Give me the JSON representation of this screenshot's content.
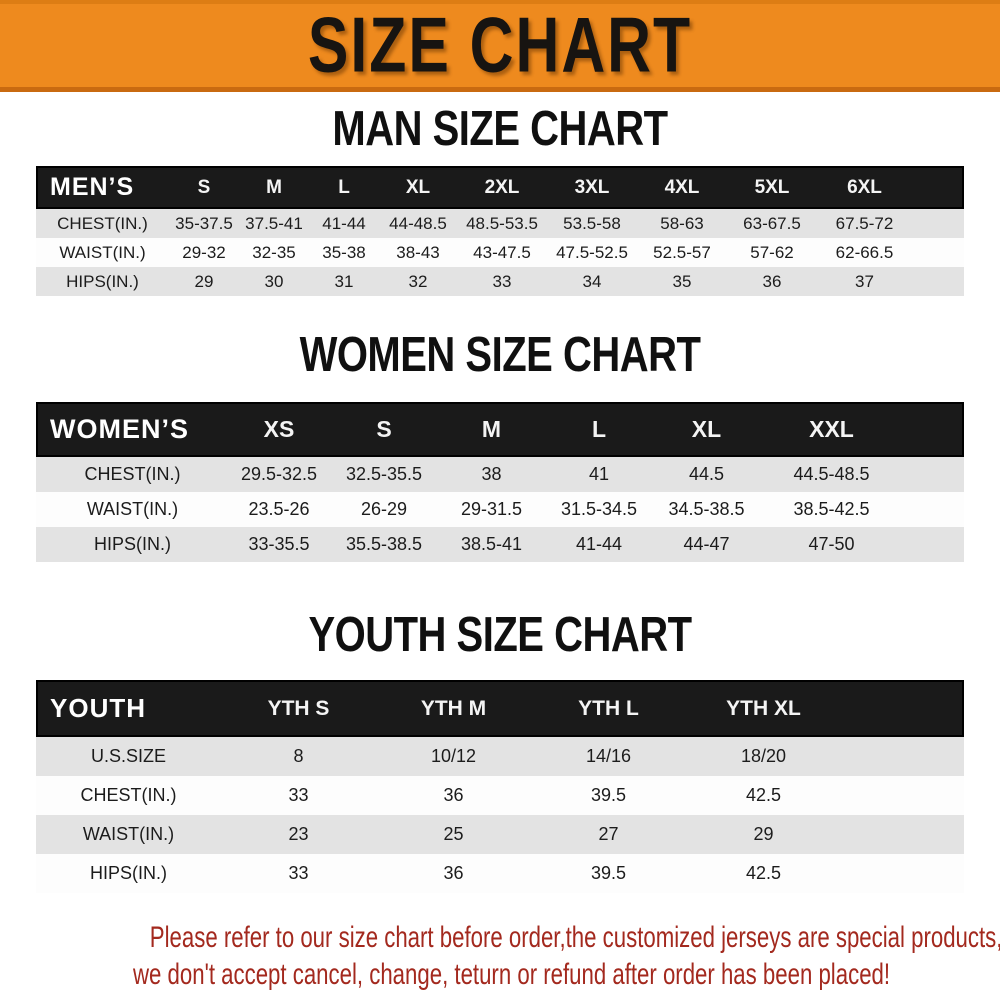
{
  "banner": {
    "title": "SIZE CHART",
    "bg_color": "#EE8A1E",
    "text_color": "#171411"
  },
  "colors": {
    "table_header_bg": "#1A1A1A",
    "table_header_text": "#FFFFFF",
    "row_alt_bg": "#E3E3E3",
    "row_bg": "#FDFDFD",
    "disclaimer_red": "#A3291E"
  },
  "sections": [
    {
      "id": "men",
      "heading": "MAN SIZE CHART",
      "table": {
        "header_label": "MEN’S",
        "sizes": [
          "S",
          "M",
          "L",
          "XL",
          "2XL",
          "3XL",
          "4XL",
          "5XL",
          "6XL"
        ],
        "rows": [
          {
            "label": "CHEST(IN.)",
            "values": [
              "35-37.5",
              "37.5-41",
              "41-44",
              "44-48.5",
              "48.5-53.5",
              "53.5-58",
              "58-63",
              "63-67.5",
              "67.5-72"
            ]
          },
          {
            "label": "WAIST(IN.)",
            "values": [
              "29-32",
              "32-35",
              "35-38",
              "38-43",
              "43-47.5",
              "47.5-52.5",
              "52.5-57",
              "57-62",
              "62-66.5"
            ]
          },
          {
            "label": "HIPS(IN.)",
            "values": [
              "29",
              "30",
              "31",
              "32",
              "33",
              "34",
              "35",
              "36",
              "37"
            ]
          }
        ]
      }
    },
    {
      "id": "women",
      "heading": "WOMEN SIZE CHART",
      "table": {
        "header_label": "WOMEN’S",
        "sizes": [
          "XS",
          "S",
          "M",
          "L",
          "XL",
          "XXL"
        ],
        "rows": [
          {
            "label": "CHEST(IN.)",
            "values": [
              "29.5-32.5",
              "32.5-35.5",
              "38",
              "41",
              "44.5",
              "44.5-48.5"
            ]
          },
          {
            "label": "WAIST(IN.)",
            "values": [
              "23.5-26",
              "26-29",
              "29-31.5",
              "31.5-34.5",
              "34.5-38.5",
              "38.5-42.5"
            ]
          },
          {
            "label": "HIPS(IN.)",
            "values": [
              "33-35.5",
              "35.5-38.5",
              "38.5-41",
              "41-44",
              "44-47",
              "47-50"
            ]
          }
        ]
      }
    },
    {
      "id": "youth",
      "heading": "YOUTH SIZE CHART",
      "table": {
        "header_label": "YOUTH",
        "sizes": [
          "YTH S",
          "YTH M",
          "YTH L",
          "YTH XL"
        ],
        "rows": [
          {
            "label": "U.S.SIZE",
            "values": [
              "8",
              "10/12",
              "14/16",
              "18/20"
            ]
          },
          {
            "label": "CHEST(IN.)",
            "values": [
              "33",
              "36",
              "39.5",
              "42.5"
            ]
          },
          {
            "label": "WAIST(IN.)",
            "values": [
              "23",
              "25",
              "27",
              "29"
            ]
          },
          {
            "label": "HIPS(IN.)",
            "values": [
              "33",
              "36",
              "39.5",
              "42.5"
            ]
          }
        ]
      }
    }
  ],
  "disclaimer": {
    "line1": "Please refer to our size chart before order,the customized jerseys are special products,",
    "line2": "we don't accept cancel, change, teturn or refund after order has been placed!"
  }
}
